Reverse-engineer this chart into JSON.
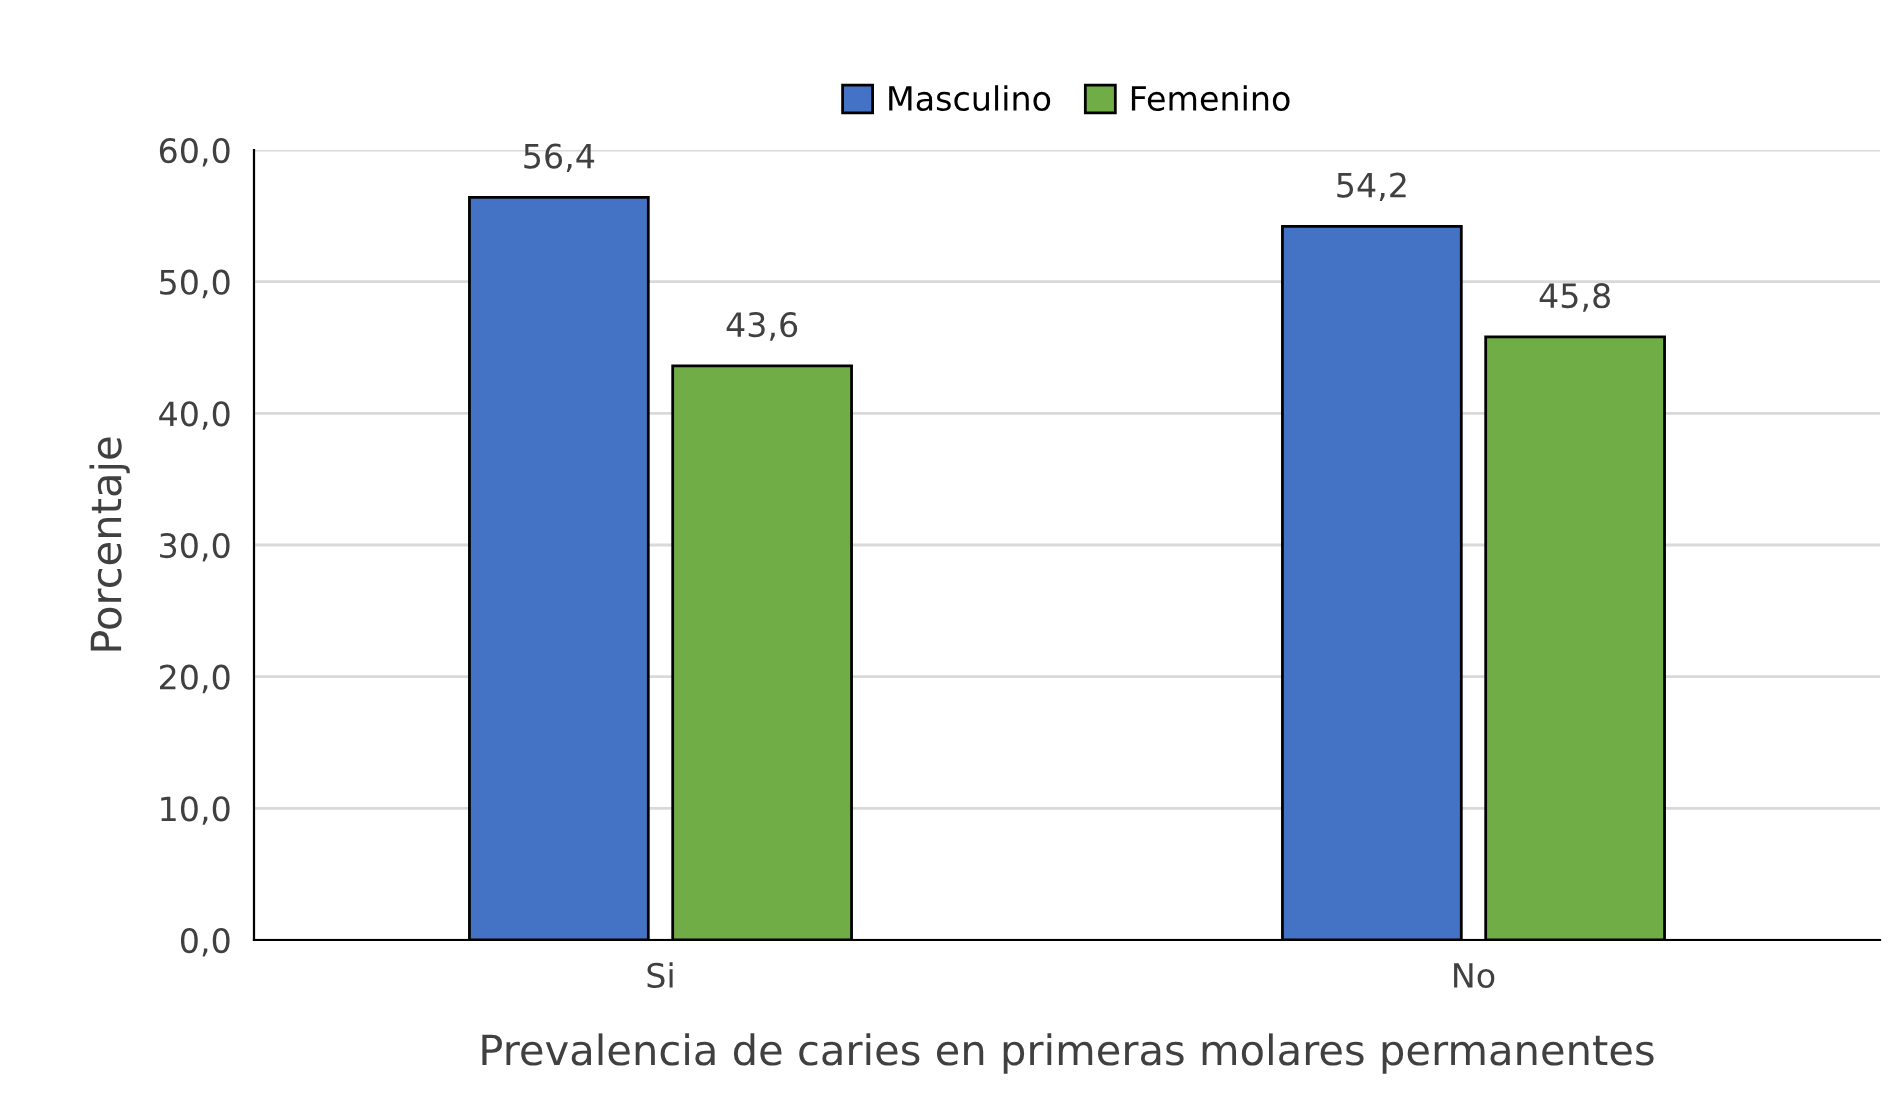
{
  "chart_data": {
    "type": "bar",
    "xlabel": "Prevalencia de caries en primeras molares permanentes",
    "ylabel": "Porcentaje",
    "categories": [
      "Si",
      "No"
    ],
    "series": [
      {
        "name": "Masculino",
        "color": "#4472c4",
        "values": [
          56.4,
          54.2
        ],
        "value_labels": [
          "56,4",
          "54,2"
        ]
      },
      {
        "name": "Femenino",
        "color": "#70ad47",
        "values": [
          43.6,
          45.8
        ],
        "value_labels": [
          "43,6",
          "45,8"
        ]
      }
    ],
    "ylim": [
      0,
      60
    ],
    "yticks": [
      {
        "value": 0,
        "label": "0,0"
      },
      {
        "value": 10,
        "label": "10,0"
      },
      {
        "value": 20,
        "label": "20,0"
      },
      {
        "value": 30,
        "label": "30,0"
      },
      {
        "value": 40,
        "label": "40,0"
      },
      {
        "value": 50,
        "label": "50,0"
      },
      {
        "value": 60,
        "label": "60,0"
      }
    ],
    "grid": "y",
    "legend": "top"
  }
}
